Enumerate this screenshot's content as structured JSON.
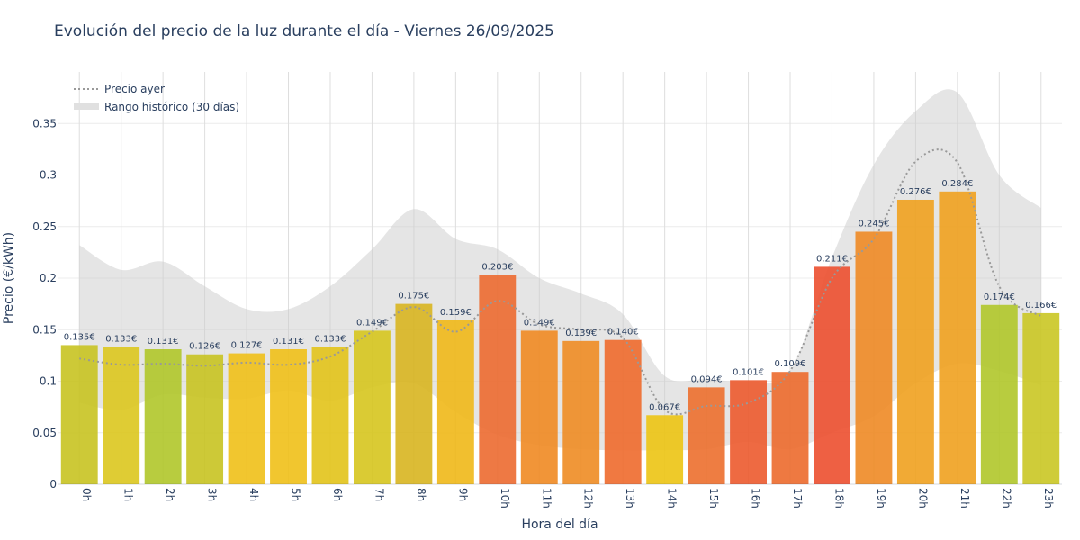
{
  "chart_data": {
    "type": "bar",
    "title": "Evolución del precio de la luz durante el día - Viernes 26/09/2025",
    "xlabel": "Hora del día",
    "ylabel": "Precio (€/kWh)",
    "ylim": [
      0,
      0.4
    ],
    "yticks": [
      0,
      0.05,
      0.1,
      0.15,
      0.2,
      0.25,
      0.3,
      0.35
    ],
    "ytick_labels": [
      "0",
      "0.05",
      "0.1",
      "0.15",
      "0.2",
      "0.25",
      "0.3",
      "0.35"
    ],
    "categories": [
      "0h",
      "1h",
      "2h",
      "3h",
      "4h",
      "5h",
      "6h",
      "7h",
      "8h",
      "9h",
      "10h",
      "11h",
      "12h",
      "13h",
      "14h",
      "15h",
      "16h",
      "17h",
      "18h",
      "19h",
      "20h",
      "21h",
      "22h",
      "23h"
    ],
    "values": [
      0.135,
      0.133,
      0.131,
      0.126,
      0.127,
      0.131,
      0.133,
      0.149,
      0.175,
      0.159,
      0.203,
      0.149,
      0.139,
      0.14,
      0.067,
      0.094,
      0.101,
      0.109,
      0.211,
      0.245,
      0.276,
      0.284,
      0.174,
      0.166
    ],
    "value_labels": [
      "0.135€",
      "0.133€",
      "0.131€",
      "0.126€",
      "0.127€",
      "0.131€",
      "0.133€",
      "0.149€",
      "0.175€",
      "0.159€",
      "0.203€",
      "0.149€",
      "0.139€",
      "0.140€",
      "0.067€",
      "0.094€",
      "0.101€",
      "0.109€",
      "0.211€",
      "0.245€",
      "0.276€",
      "0.284€",
      "0.174€",
      "0.166€"
    ],
    "bar_colors": [
      "#c8c321",
      "#dbc71e",
      "#b0c72a",
      "#c8c321",
      "#f0c018",
      "#f0c018",
      "#e2c31a",
      "#d6c51e",
      "#d8b520",
      "#f0b818",
      "#ec6a30",
      "#f08a22",
      "#ee8c24",
      "#ee6a2c",
      "#ecc413",
      "#ec6f2d",
      "#ec5a2e",
      "#ec6a2c",
      "#ec4f2f",
      "#ee8a25",
      "#efa11f",
      "#efa11f",
      "#b0c72a",
      "#cac723"
    ],
    "series": [
      {
        "name": "Precio ayer",
        "type": "line",
        "style": "dotted",
        "color": "#999999",
        "values": [
          0.122,
          0.116,
          0.117,
          0.115,
          0.118,
          0.116,
          0.124,
          0.148,
          0.172,
          0.148,
          0.178,
          0.155,
          0.15,
          0.142,
          0.072,
          0.076,
          0.079,
          0.11,
          0.2,
          0.238,
          0.313,
          0.312,
          0.192,
          0.163
        ]
      },
      {
        "name": "Rango histórico (30 días)",
        "type": "band",
        "color": "#cccccc",
        "upper": [
          0.232,
          0.208,
          0.216,
          0.192,
          0.17,
          0.17,
          0.192,
          0.228,
          0.267,
          0.238,
          0.228,
          0.2,
          0.185,
          0.165,
          0.105,
          0.102,
          0.1,
          0.11,
          0.22,
          0.31,
          0.362,
          0.38,
          0.3,
          0.268
        ],
        "lower": [
          0.079,
          0.072,
          0.087,
          0.084,
          0.083,
          0.091,
          0.081,
          0.094,
          0.098,
          0.07,
          0.048,
          0.038,
          0.034,
          0.033,
          0.033,
          0.034,
          0.041,
          0.034,
          0.05,
          0.066,
          0.098,
          0.117,
          0.11,
          0.096
        ]
      }
    ],
    "legend": {
      "position": "top-left",
      "entries": [
        "Precio ayer",
        "Rango histórico (30 días)"
      ]
    }
  }
}
